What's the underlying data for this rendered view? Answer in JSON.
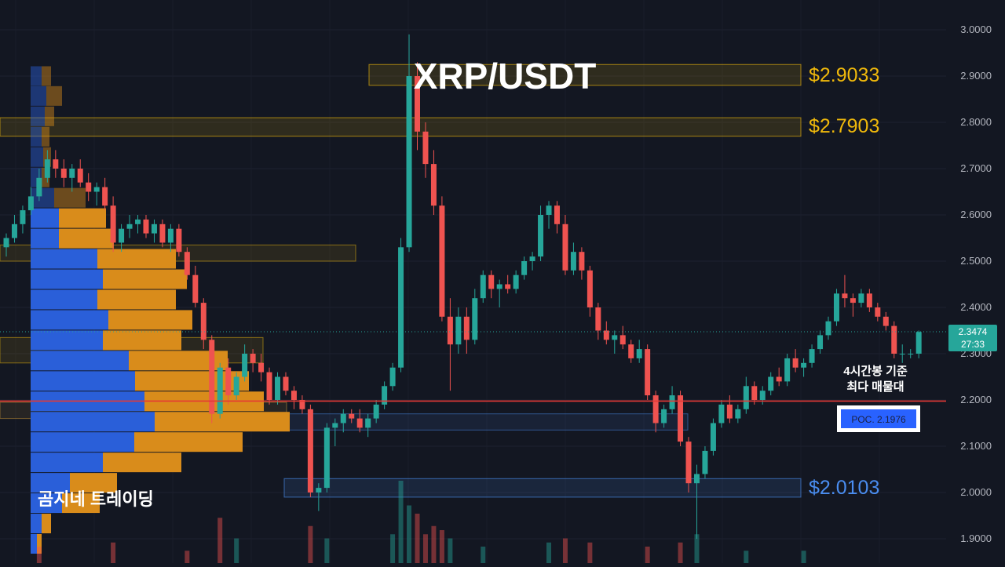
{
  "chart_data": {
    "type": "candlestick",
    "title": "XRP/USDT",
    "watermark": "곰지네 트레이딩",
    "y_axis": {
      "ylim": [
        1.87,
        3.03
      ],
      "ticks": [
        "3.0000",
        "2.9000",
        "2.8000",
        "2.7000",
        "2.6000",
        "2.5000",
        "2.4000",
        "2.3000",
        "2.2000",
        "2.1000",
        "2.0000",
        "1.9000"
      ],
      "tick_values": [
        3.0,
        2.9,
        2.8,
        2.7,
        2.6,
        2.5,
        2.4,
        2.3,
        2.2,
        2.1,
        2.0,
        1.9
      ],
      "position": "right"
    },
    "grid": true,
    "current_price": {
      "value": 2.3474,
      "label": "2.3474",
      "countdown": "27:33",
      "color": "#26a69a"
    },
    "levels": [
      {
        "label": "$2.9033",
        "low": 2.88,
        "high": 2.925,
        "color": "#f0b90b"
      },
      {
        "label": "$2.7903",
        "low": 2.77,
        "high": 2.81,
        "color": "#f0b90b"
      },
      {
        "label": "$2.0103",
        "low": 1.99,
        "high": 2.03,
        "color": "#4a8df0"
      }
    ],
    "extra_zones": [
      {
        "low": 2.5,
        "high": 2.535,
        "color": "#f0b90b"
      },
      {
        "low": 2.28,
        "high": 2.335,
        "color": "#f0b90b"
      },
      {
        "low": 2.16,
        "high": 2.195,
        "color": "#d9a23a"
      },
      {
        "low": 2.135,
        "high": 2.17,
        "color": "#4a8df0"
      }
    ],
    "poc": {
      "value": 2.1976,
      "label": "POC. 2.1976",
      "note_line1": "4시간봉 기준",
      "note_line2": "최다 매물대",
      "color": "#e53935"
    },
    "volume_profile": [
      {
        "price": 2.9,
        "buy": 14,
        "sell": 12
      },
      {
        "price": 2.857,
        "buy": 20,
        "sell": 20
      },
      {
        "price": 2.813,
        "buy": 18,
        "sell": 12
      },
      {
        "price": 2.769,
        "buy": 14,
        "sell": 10
      },
      {
        "price": 2.725,
        "buy": 16,
        "sell": 10
      },
      {
        "price": 2.681,
        "buy": 14,
        "sell": 10
      },
      {
        "price": 2.637,
        "buy": 30,
        "sell": 40
      },
      {
        "price": 2.593,
        "buy": 36,
        "sell": 60
      },
      {
        "price": 2.549,
        "buy": 36,
        "sell": 70
      },
      {
        "price": 2.505,
        "buy": 85,
        "sell": 100
      },
      {
        "price": 2.461,
        "buy": 92,
        "sell": 107
      },
      {
        "price": 2.417,
        "buy": 85,
        "sell": 100
      },
      {
        "price": 2.373,
        "buy": 99,
        "sell": 107
      },
      {
        "price": 2.329,
        "buy": 92,
        "sell": 100
      },
      {
        "price": 2.285,
        "buy": 125,
        "sell": 126
      },
      {
        "price": 2.241,
        "buy": 133,
        "sell": 145
      },
      {
        "price": 2.197,
        "buy": 145,
        "sell": 152
      },
      {
        "price": 2.153,
        "buy": 158,
        "sell": 172
      },
      {
        "price": 2.109,
        "buy": 132,
        "sell": 138
      },
      {
        "price": 2.065,
        "buy": 92,
        "sell": 100
      },
      {
        "price": 2.021,
        "buy": 50,
        "sell": 60
      },
      {
        "price": 1.977,
        "buy": 40,
        "sell": 48
      },
      {
        "price": 1.933,
        "buy": 14,
        "sell": 12
      },
      {
        "price": 1.889,
        "buy": 8,
        "sell": 6
      }
    ],
    "candles": [
      {
        "o": 2.53,
        "h": 2.56,
        "l": 2.51,
        "c": 2.55
      },
      {
        "o": 2.55,
        "h": 2.6,
        "l": 2.54,
        "c": 2.58
      },
      {
        "o": 2.58,
        "h": 2.62,
        "l": 2.56,
        "c": 2.61
      },
      {
        "o": 2.61,
        "h": 2.66,
        "l": 2.6,
        "c": 2.64
      },
      {
        "o": 2.64,
        "h": 2.7,
        "l": 2.63,
        "c": 2.68
      },
      {
        "o": 2.68,
        "h": 2.74,
        "l": 2.67,
        "c": 2.72
      },
      {
        "o": 2.72,
        "h": 2.74,
        "l": 2.68,
        "c": 2.7
      },
      {
        "o": 2.7,
        "h": 2.72,
        "l": 2.66,
        "c": 2.68
      },
      {
        "o": 2.68,
        "h": 2.71,
        "l": 2.65,
        "c": 2.7
      },
      {
        "o": 2.7,
        "h": 2.72,
        "l": 2.66,
        "c": 2.67
      },
      {
        "o": 2.67,
        "h": 2.69,
        "l": 2.63,
        "c": 2.65
      },
      {
        "o": 2.65,
        "h": 2.67,
        "l": 2.62,
        "c": 2.66
      },
      {
        "o": 2.66,
        "h": 2.68,
        "l": 2.61,
        "c": 2.62
      },
      {
        "o": 2.62,
        "h": 2.64,
        "l": 2.52,
        "c": 2.54
      },
      {
        "o": 2.54,
        "h": 2.58,
        "l": 2.52,
        "c": 2.57
      },
      {
        "o": 2.57,
        "h": 2.6,
        "l": 2.55,
        "c": 2.58
      },
      {
        "o": 2.58,
        "h": 2.6,
        "l": 2.56,
        "c": 2.59
      },
      {
        "o": 2.59,
        "h": 2.6,
        "l": 2.55,
        "c": 2.56
      },
      {
        "o": 2.56,
        "h": 2.59,
        "l": 2.54,
        "c": 2.58
      },
      {
        "o": 2.58,
        "h": 2.59,
        "l": 2.53,
        "c": 2.54
      },
      {
        "o": 2.54,
        "h": 2.58,
        "l": 2.52,
        "c": 2.57
      },
      {
        "o": 2.57,
        "h": 2.58,
        "l": 2.51,
        "c": 2.52
      },
      {
        "o": 2.52,
        "h": 2.53,
        "l": 2.46,
        "c": 2.47
      },
      {
        "o": 2.47,
        "h": 2.49,
        "l": 2.4,
        "c": 2.41
      },
      {
        "o": 2.41,
        "h": 2.42,
        "l": 2.31,
        "c": 2.33
      },
      {
        "o": 2.33,
        "h": 2.34,
        "l": 2.15,
        "c": 2.17
      },
      {
        "o": 2.17,
        "h": 2.28,
        "l": 2.16,
        "c": 2.27
      },
      {
        "o": 2.27,
        "h": 2.29,
        "l": 2.19,
        "c": 2.21
      },
      {
        "o": 2.21,
        "h": 2.26,
        "l": 2.2,
        "c": 2.25
      },
      {
        "o": 2.25,
        "h": 2.32,
        "l": 2.24,
        "c": 2.3
      },
      {
        "o": 2.3,
        "h": 2.31,
        "l": 2.26,
        "c": 2.28
      },
      {
        "o": 2.28,
        "h": 2.3,
        "l": 2.24,
        "c": 2.26
      },
      {
        "o": 2.26,
        "h": 2.27,
        "l": 2.19,
        "c": 2.2
      },
      {
        "o": 2.2,
        "h": 2.26,
        "l": 2.19,
        "c": 2.25
      },
      {
        "o": 2.25,
        "h": 2.26,
        "l": 2.21,
        "c": 2.22
      },
      {
        "o": 2.22,
        "h": 2.23,
        "l": 2.18,
        "c": 2.2
      },
      {
        "o": 2.2,
        "h": 2.21,
        "l": 2.17,
        "c": 2.18
      },
      {
        "o": 2.18,
        "h": 2.19,
        "l": 1.99,
        "c": 2.0
      },
      {
        "o": 2.0,
        "h": 2.02,
        "l": 1.96,
        "c": 2.01
      },
      {
        "o": 2.01,
        "h": 2.15,
        "l": 2.0,
        "c": 2.14
      },
      {
        "o": 2.14,
        "h": 2.16,
        "l": 2.1,
        "c": 2.15
      },
      {
        "o": 2.15,
        "h": 2.18,
        "l": 2.13,
        "c": 2.17
      },
      {
        "o": 2.17,
        "h": 2.18,
        "l": 2.15,
        "c": 2.16
      },
      {
        "o": 2.16,
        "h": 2.18,
        "l": 2.13,
        "c": 2.14
      },
      {
        "o": 2.14,
        "h": 2.17,
        "l": 2.12,
        "c": 2.16
      },
      {
        "o": 2.16,
        "h": 2.2,
        "l": 2.15,
        "c": 2.19
      },
      {
        "o": 2.19,
        "h": 2.24,
        "l": 2.18,
        "c": 2.23
      },
      {
        "o": 2.23,
        "h": 2.28,
        "l": 2.22,
        "c": 2.27
      },
      {
        "o": 2.27,
        "h": 2.55,
        "l": 2.26,
        "c": 2.53
      },
      {
        "o": 2.53,
        "h": 2.99,
        "l": 2.52,
        "c": 2.9
      },
      {
        "o": 2.9,
        "h": 2.93,
        "l": 2.74,
        "c": 2.78
      },
      {
        "o": 2.78,
        "h": 2.8,
        "l": 2.68,
        "c": 2.71
      },
      {
        "o": 2.71,
        "h": 2.74,
        "l": 2.6,
        "c": 2.62
      },
      {
        "o": 2.62,
        "h": 2.64,
        "l": 2.37,
        "c": 2.38
      },
      {
        "o": 2.38,
        "h": 2.42,
        "l": 2.22,
        "c": 2.32
      },
      {
        "o": 2.32,
        "h": 2.4,
        "l": 2.3,
        "c": 2.38
      },
      {
        "o": 2.38,
        "h": 2.4,
        "l": 2.3,
        "c": 2.33
      },
      {
        "o": 2.33,
        "h": 2.44,
        "l": 2.32,
        "c": 2.42
      },
      {
        "o": 2.42,
        "h": 2.48,
        "l": 2.41,
        "c": 2.47
      },
      {
        "o": 2.47,
        "h": 2.48,
        "l": 2.42,
        "c": 2.44
      },
      {
        "o": 2.44,
        "h": 2.46,
        "l": 2.4,
        "c": 2.45
      },
      {
        "o": 2.45,
        "h": 2.47,
        "l": 2.43,
        "c": 2.44
      },
      {
        "o": 2.44,
        "h": 2.48,
        "l": 2.43,
        "c": 2.47
      },
      {
        "o": 2.47,
        "h": 2.51,
        "l": 2.46,
        "c": 2.5
      },
      {
        "o": 2.5,
        "h": 2.52,
        "l": 2.48,
        "c": 2.51
      },
      {
        "o": 2.51,
        "h": 2.62,
        "l": 2.5,
        "c": 2.6
      },
      {
        "o": 2.6,
        "h": 2.63,
        "l": 2.57,
        "c": 2.62
      },
      {
        "o": 2.62,
        "h": 2.63,
        "l": 2.56,
        "c": 2.58
      },
      {
        "o": 2.58,
        "h": 2.6,
        "l": 2.47,
        "c": 2.48
      },
      {
        "o": 2.48,
        "h": 2.54,
        "l": 2.47,
        "c": 2.52
      },
      {
        "o": 2.52,
        "h": 2.53,
        "l": 2.46,
        "c": 2.48
      },
      {
        "o": 2.48,
        "h": 2.49,
        "l": 2.38,
        "c": 2.4
      },
      {
        "o": 2.4,
        "h": 2.41,
        "l": 2.33,
        "c": 2.35
      },
      {
        "o": 2.35,
        "h": 2.37,
        "l": 2.32,
        "c": 2.33
      },
      {
        "o": 2.33,
        "h": 2.35,
        "l": 2.3,
        "c": 2.34
      },
      {
        "o": 2.34,
        "h": 2.36,
        "l": 2.31,
        "c": 2.32
      },
      {
        "o": 2.32,
        "h": 2.33,
        "l": 2.28,
        "c": 2.29
      },
      {
        "o": 2.29,
        "h": 2.33,
        "l": 2.28,
        "c": 2.31
      },
      {
        "o": 2.31,
        "h": 2.32,
        "l": 2.2,
        "c": 2.21
      },
      {
        "o": 2.21,
        "h": 2.22,
        "l": 2.13,
        "c": 2.15
      },
      {
        "o": 2.15,
        "h": 2.19,
        "l": 2.14,
        "c": 2.18
      },
      {
        "o": 2.18,
        "h": 2.23,
        "l": 2.17,
        "c": 2.21
      },
      {
        "o": 2.21,
        "h": 2.22,
        "l": 2.1,
        "c": 2.11
      },
      {
        "o": 2.11,
        "h": 2.12,
        "l": 2.0,
        "c": 2.02
      },
      {
        "o": 2.02,
        "h": 2.06,
        "l": 1.9,
        "c": 2.04
      },
      {
        "o": 2.04,
        "h": 2.1,
        "l": 2.03,
        "c": 2.09
      },
      {
        "o": 2.09,
        "h": 2.16,
        "l": 2.08,
        "c": 2.15
      },
      {
        "o": 2.15,
        "h": 2.2,
        "l": 2.14,
        "c": 2.19
      },
      {
        "o": 2.19,
        "h": 2.21,
        "l": 2.15,
        "c": 2.16
      },
      {
        "o": 2.16,
        "h": 2.19,
        "l": 2.15,
        "c": 2.18
      },
      {
        "o": 2.18,
        "h": 2.25,
        "l": 2.17,
        "c": 2.23
      },
      {
        "o": 2.23,
        "h": 2.24,
        "l": 2.19,
        "c": 2.2
      },
      {
        "o": 2.2,
        "h": 2.23,
        "l": 2.19,
        "c": 2.22
      },
      {
        "o": 2.22,
        "h": 2.26,
        "l": 2.21,
        "c": 2.25
      },
      {
        "o": 2.25,
        "h": 2.27,
        "l": 2.23,
        "c": 2.24
      },
      {
        "o": 2.24,
        "h": 2.3,
        "l": 2.23,
        "c": 2.29
      },
      {
        "o": 2.29,
        "h": 2.31,
        "l": 2.26,
        "c": 2.27
      },
      {
        "o": 2.27,
        "h": 2.29,
        "l": 2.25,
        "c": 2.28
      },
      {
        "o": 2.28,
        "h": 2.32,
        "l": 2.27,
        "c": 2.31
      },
      {
        "o": 2.31,
        "h": 2.35,
        "l": 2.3,
        "c": 2.34
      },
      {
        "o": 2.34,
        "h": 2.38,
        "l": 2.33,
        "c": 2.37
      },
      {
        "o": 2.37,
        "h": 2.44,
        "l": 2.36,
        "c": 2.43
      },
      {
        "o": 2.43,
        "h": 2.47,
        "l": 2.4,
        "c": 2.42
      },
      {
        "o": 2.42,
        "h": 2.43,
        "l": 2.38,
        "c": 2.41
      },
      {
        "o": 2.41,
        "h": 2.44,
        "l": 2.4,
        "c": 2.43
      },
      {
        "o": 2.43,
        "h": 2.44,
        "l": 2.39,
        "c": 2.4
      },
      {
        "o": 2.4,
        "h": 2.41,
        "l": 2.37,
        "c": 2.38
      },
      {
        "o": 2.38,
        "h": 2.39,
        "l": 2.35,
        "c": 2.36
      },
      {
        "o": 2.36,
        "h": 2.37,
        "l": 2.29,
        "c": 2.3
      },
      {
        "o": 2.3,
        "h": 2.32,
        "l": 2.28,
        "c": 2.3
      },
      {
        "o": 2.3,
        "h": 2.31,
        "l": 2.29,
        "c": 2.3
      },
      {
        "o": 2.3,
        "h": 2.35,
        "l": 2.29,
        "c": 2.347
      }
    ],
    "volume_bars": [
      {
        "i": 4,
        "v": 0.2,
        "up": false
      },
      {
        "i": 13,
        "v": 0.25,
        "up": false
      },
      {
        "i": 22,
        "v": 0.15,
        "up": false
      },
      {
        "i": 26,
        "v": 0.55,
        "up": false
      },
      {
        "i": 28,
        "v": 0.3,
        "up": true
      },
      {
        "i": 37,
        "v": 0.45,
        "up": false
      },
      {
        "i": 39,
        "v": 0.3,
        "up": true
      },
      {
        "i": 47,
        "v": 0.35,
        "up": true
      },
      {
        "i": 48,
        "v": 1.0,
        "up": true
      },
      {
        "i": 49,
        "v": 0.7,
        "up": true
      },
      {
        "i": 50,
        "v": 0.6,
        "up": false
      },
      {
        "i": 51,
        "v": 0.35,
        "up": false
      },
      {
        "i": 52,
        "v": 0.45,
        "up": false
      },
      {
        "i": 53,
        "v": 0.4,
        "up": false
      },
      {
        "i": 54,
        "v": 0.3,
        "up": true
      },
      {
        "i": 58,
        "v": 0.2,
        "up": true
      },
      {
        "i": 66,
        "v": 0.25,
        "up": true
      },
      {
        "i": 68,
        "v": 0.3,
        "up": false
      },
      {
        "i": 71,
        "v": 0.25,
        "up": false
      },
      {
        "i": 78,
        "v": 0.2,
        "up": false
      },
      {
        "i": 82,
        "v": 0.25,
        "up": false
      },
      {
        "i": 84,
        "v": 0.35,
        "up": true
      },
      {
        "i": 90,
        "v": 0.15,
        "up": true
      },
      {
        "i": 97,
        "v": 0.15,
        "up": true
      }
    ]
  }
}
